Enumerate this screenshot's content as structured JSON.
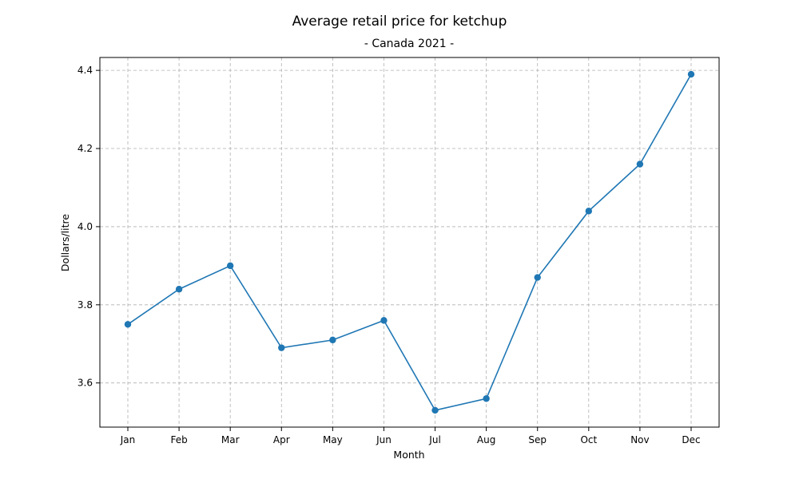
{
  "chart_data": {
    "type": "line",
    "title": "Average retail price for ketchup",
    "subtitle": "- Canada 2021 -",
    "xlabel": "Month",
    "ylabel": "Dollars/litre",
    "categories": [
      "Jan",
      "Feb",
      "Mar",
      "Apr",
      "May",
      "Jun",
      "Jul",
      "Aug",
      "Sep",
      "Oct",
      "Nov",
      "Dec"
    ],
    "series": [
      {
        "values": [
          3.75,
          3.84,
          3.9,
          3.69,
          3.71,
          3.76,
          3.53,
          3.56,
          3.87,
          4.04,
          4.16,
          4.39
        ],
        "color": "#1f77b4",
        "marker": "circle"
      }
    ],
    "ylim": [
      3.487,
      4.433
    ],
    "yticks": [
      "3.6",
      "3.8",
      "4.0",
      "4.2",
      "4.4"
    ],
    "grid": true,
    "legend": "none"
  }
}
